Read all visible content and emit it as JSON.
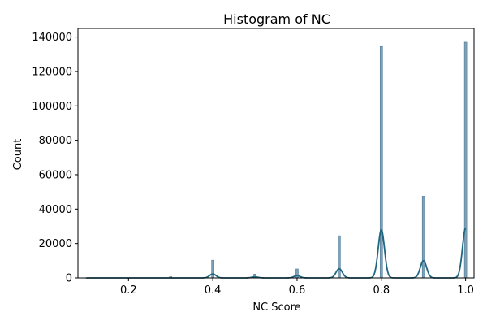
{
  "chart_data": {
    "type": "histogram",
    "title": "Histogram of NC",
    "xlabel": "NC Score",
    "ylabel": "Count",
    "xlim": [
      0.08,
      1.02
    ],
    "ylim": [
      0,
      145000
    ],
    "xticks": [
      0.2,
      0.4,
      0.6,
      0.8,
      1.0
    ],
    "xtick_labels": [
      "0.2",
      "0.4",
      "0.6",
      "0.8",
      "1.0"
    ],
    "yticks": [
      0,
      20000,
      40000,
      60000,
      80000,
      100000,
      120000,
      140000
    ],
    "ytick_labels": [
      "0",
      "20000",
      "40000",
      "60000",
      "80000",
      "100000",
      "120000",
      "140000"
    ],
    "bins": [
      {
        "x": 0.1,
        "count": 50
      },
      {
        "x": 0.2,
        "count": 100
      },
      {
        "x": 0.3,
        "count": 700
      },
      {
        "x": 0.4,
        "count": 10300
      },
      {
        "x": 0.5,
        "count": 2200
      },
      {
        "x": 0.6,
        "count": 5200
      },
      {
        "x": 0.7,
        "count": 24500
      },
      {
        "x": 0.8,
        "count": 134500
      },
      {
        "x": 0.9,
        "count": 47500
      },
      {
        "x": 1.0,
        "count": 137000
      }
    ],
    "kde": {
      "bandwidth": 0.0075,
      "peaks": [
        {
          "x": 0.4,
          "height": 2300
        },
        {
          "x": 0.5,
          "height": 600
        },
        {
          "x": 0.6,
          "height": 1300
        },
        {
          "x": 0.7,
          "height": 5300
        },
        {
          "x": 0.8,
          "height": 28000
        },
        {
          "x": 0.9,
          "height": 10000
        },
        {
          "x": 1.0,
          "height": 28800
        }
      ]
    },
    "colors": {
      "bar_fill": "#7fa1b8",
      "bar_edge": "#4f7a96",
      "kde_line": "#1f6680"
    }
  }
}
